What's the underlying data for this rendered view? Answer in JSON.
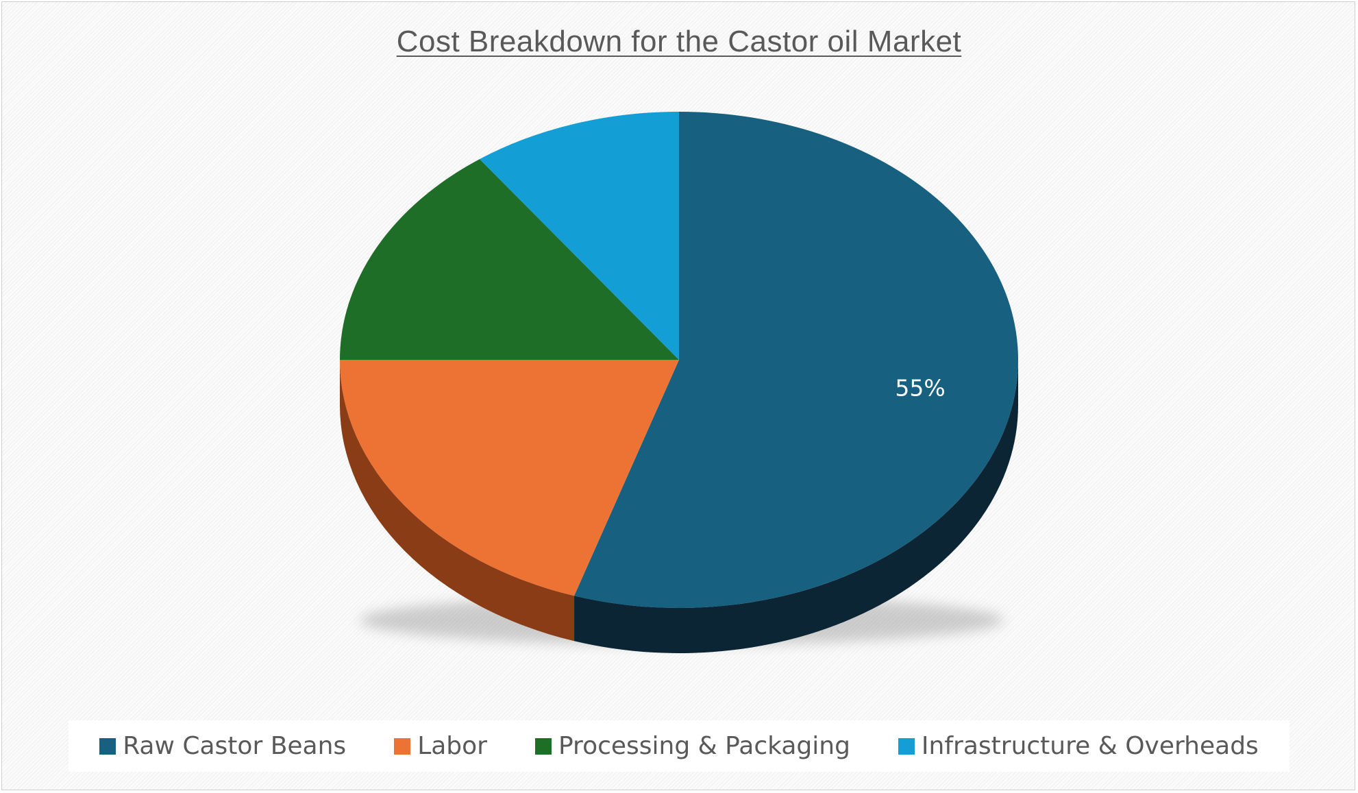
{
  "chart_data": {
    "type": "pie",
    "title": "Cost Breakdown for the Castor oil Market",
    "categories": [
      "Raw Castor Beans",
      "Labor",
      "Processing & Packaging",
      "Infrastructure & Overheads"
    ],
    "values": [
      55,
      20,
      15,
      10
    ],
    "data_labels": [
      "55%",
      "",
      "",
      ""
    ],
    "colors": [
      "#186080",
      "#EC7333",
      "#1E6E28",
      "#139FD6"
    ],
    "side_colors": [
      "#0B2535",
      "#8A3C16",
      "#0D3A14",
      "#0B5E80"
    ],
    "legend_position": "bottom",
    "style": "3d"
  }
}
